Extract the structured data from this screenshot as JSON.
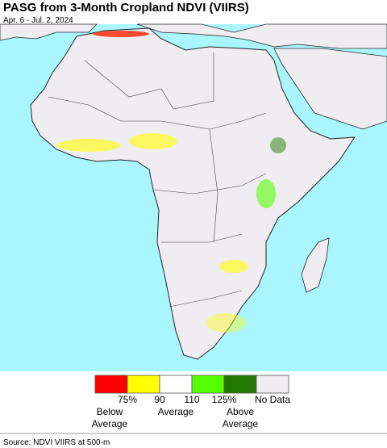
{
  "header": {
    "title": "PASG from 3-Month Cropland NDVI (VIIRS)",
    "subtitle": "Apr. 6 - Jul. 2, 2024"
  },
  "legend": {
    "colors": [
      "#ff0000",
      "#ffff00",
      "#ffffff",
      "#55ff00",
      "#227a00",
      "#f0edf2"
    ],
    "ticks": [
      "75%",
      "90",
      "110",
      "125%"
    ],
    "no_data": "No Data",
    "groups": [
      [
        "Below",
        "Average"
      ],
      [
        "Average"
      ],
      [
        "Above",
        "Average"
      ]
    ]
  },
  "footer": {
    "source": "Source: NDVI VIIRS at 500-m"
  }
}
